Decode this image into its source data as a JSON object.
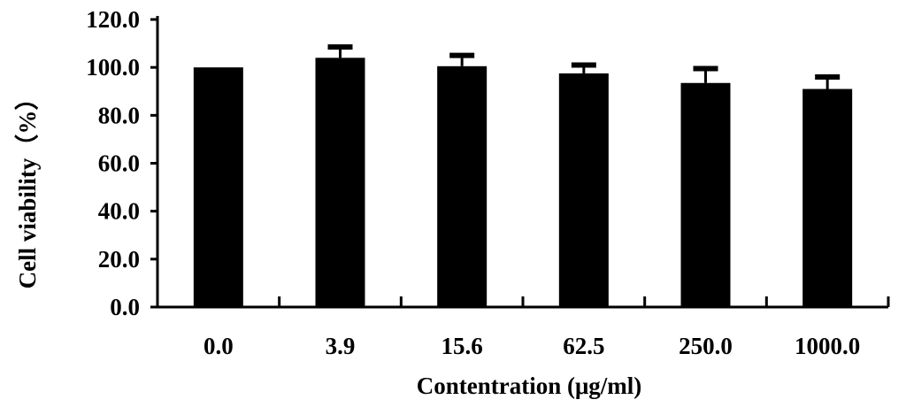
{
  "chart_data": {
    "type": "bar",
    "categories": [
      "0.0",
      "3.9",
      "15.6",
      "62.5",
      "250.0",
      "1000.0"
    ],
    "series": [
      {
        "values": [
          100.0,
          104.0,
          100.5,
          97.5,
          93.5,
          91.0
        ],
        "error": [
          0.0,
          4.5,
          4.5,
          3.5,
          6.0,
          5.0
        ]
      }
    ],
    "xlabel": "Contentration (μg/ml)",
    "ylabel": "Cell viability（%）",
    "ylim": [
      0,
      120
    ],
    "yticks": [
      "0.0",
      "20.0",
      "40.0",
      "60.0",
      "80.0",
      "100.0",
      "120.0"
    ],
    "grid": false,
    "legend": "none",
    "bar_color": "#000000"
  }
}
